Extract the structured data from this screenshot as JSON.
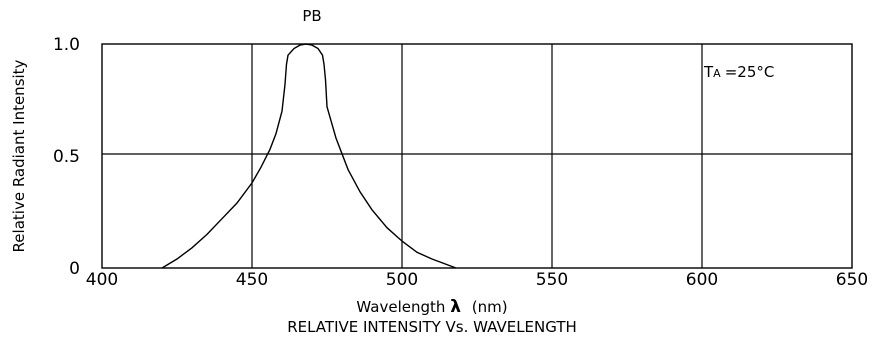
{
  "chart_data": {
    "type": "line",
    "title": "RELATIVE INTENSITY Vs. WAVELENGTH",
    "series_label": "PB",
    "annotation": {
      "prefix": "T",
      "subscript": "A",
      "text": "=25°C"
    },
    "xlabel": {
      "text": "Wavelength",
      "symbol": "λ",
      "unit": "(nm)"
    },
    "ylabel": "Relative Radiant Intensity",
    "xlim": [
      400,
      650
    ],
    "ylim": [
      0,
      1.0
    ],
    "x_ticks": [
      "400",
      "450",
      "500",
      "550",
      "600",
      "650"
    ],
    "y_ticks": [
      {
        "value": 0,
        "label": "0"
      },
      {
        "value": 0.5,
        "label": "0.5"
      },
      {
        "value": 1.0,
        "label": "1.0"
      }
    ],
    "hgrid": [
      0.5
    ],
    "vgrid": [
      450,
      500,
      550,
      600
    ],
    "series": [
      {
        "name": "PB",
        "points": [
          [
            420,
            0
          ],
          [
            425,
            0.04
          ],
          [
            430,
            0.09
          ],
          [
            435,
            0.15
          ],
          [
            440,
            0.22
          ],
          [
            445,
            0.29
          ],
          [
            450,
            0.38
          ],
          [
            453,
            0.45
          ],
          [
            456,
            0.53
          ],
          [
            458,
            0.6
          ],
          [
            460,
            0.7
          ],
          [
            461,
            0.82
          ],
          [
            461.5,
            0.91
          ],
          [
            462,
            0.95
          ],
          [
            464,
            0.98
          ],
          [
            466,
            0.995
          ],
          [
            468,
            1.0
          ],
          [
            470,
            0.995
          ],
          [
            472,
            0.98
          ],
          [
            473.5,
            0.95
          ],
          [
            474,
            0.91
          ],
          [
            474.5,
            0.84
          ],
          [
            475,
            0.72
          ],
          [
            478,
            0.58
          ],
          [
            482,
            0.44
          ],
          [
            486,
            0.34
          ],
          [
            490,
            0.26
          ],
          [
            495,
            0.18
          ],
          [
            500,
            0.12
          ],
          [
            505,
            0.07
          ],
          [
            510,
            0.04
          ],
          [
            515,
            0.015
          ],
          [
            518,
            0
          ]
        ]
      }
    ]
  }
}
